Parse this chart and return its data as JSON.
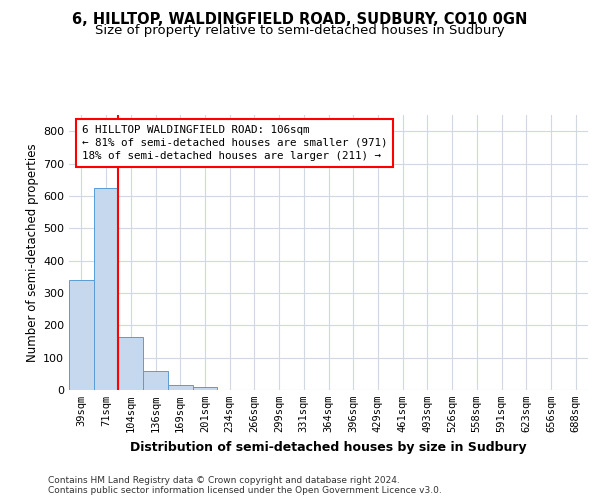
{
  "title1": "6, HILLTOP, WALDINGFIELD ROAD, SUDBURY, CO10 0GN",
  "title2": "Size of property relative to semi-detached houses in Sudbury",
  "xlabel": "Distribution of semi-detached houses by size in Sudbury",
  "ylabel": "Number of semi-detached properties",
  "footer": "Contains HM Land Registry data © Crown copyright and database right 2024.\nContains public sector information licensed under the Open Government Licence v3.0.",
  "categories": [
    "39sqm",
    "71sqm",
    "104sqm",
    "136sqm",
    "169sqm",
    "201sqm",
    "234sqm",
    "266sqm",
    "299sqm",
    "331sqm",
    "364sqm",
    "396sqm",
    "429sqm",
    "461sqm",
    "493sqm",
    "526sqm",
    "558sqm",
    "591sqm",
    "623sqm",
    "656sqm",
    "688sqm"
  ],
  "values": [
    340,
    625,
    163,
    60,
    15,
    8,
    1,
    0,
    0,
    0,
    0,
    0,
    0,
    0,
    0,
    0,
    0,
    0,
    0,
    0,
    0
  ],
  "bar_color": "#c5d8ed",
  "bar_edge_color": "#5b9bd5",
  "red_line_x": 1.5,
  "annotation_text": "6 HILLTOP WALDINGFIELD ROAD: 106sqm\n← 81% of semi-detached houses are smaller (971)\n18% of semi-detached houses are larger (211) →",
  "annotation_box_color": "white",
  "annotation_box_edge": "red",
  "ylim": [
    0,
    850
  ],
  "yticks": [
    0,
    100,
    200,
    300,
    400,
    500,
    600,
    700,
    800
  ],
  "grid_color": "#d0d8e4",
  "background_color": "white",
  "title1_fontsize": 10.5,
  "title2_fontsize": 9.5,
  "xlabel_fontsize": 9,
  "ylabel_fontsize": 8.5,
  "ann_fontsize": 7.8,
  "tick_fontsize": 7.5,
  "ytick_fontsize": 8.0,
  "footer_fontsize": 6.5
}
